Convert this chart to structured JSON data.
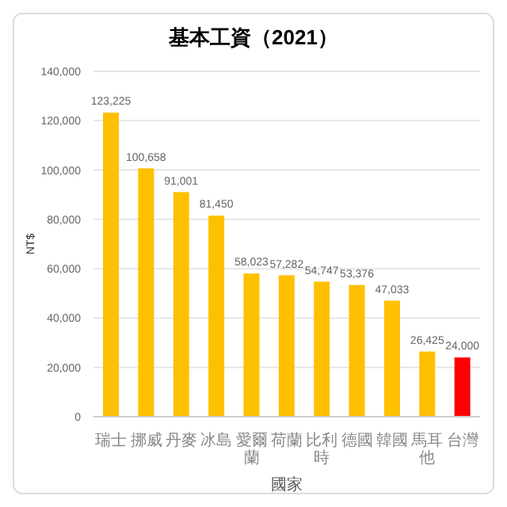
{
  "chart_data": {
    "type": "bar",
    "title": "基本工資（2021）",
    "xlabel": "國家",
    "ylabel": "NT$",
    "categories": [
      "瑞士",
      "挪威",
      "丹麥",
      "冰島",
      "愛爾蘭",
      "荷蘭",
      "比利時",
      "德國",
      "韓國",
      "馬耳他",
      "台灣"
    ],
    "values": [
      123225,
      100658,
      91001,
      81450,
      58023,
      57282,
      54747,
      53376,
      47033,
      26425,
      24000
    ],
    "colors": [
      "#ffc000",
      "#ffc000",
      "#ffc000",
      "#ffc000",
      "#ffc000",
      "#ffc000",
      "#ffc000",
      "#ffc000",
      "#ffc000",
      "#ffc000",
      "#ff0000"
    ],
    "value_labels": [
      "123,225",
      "100,658",
      "91,001",
      "81,450",
      "58,023",
      "57,282",
      "54,747",
      "53,376",
      "47,033",
      "26,425",
      "24,000"
    ],
    "ylim": [
      0,
      140000
    ],
    "yticks": [
      0,
      {
        "value": 20000,
        "label": "20,000"
      },
      {
        "value": 40000,
        "label": "40,000"
      },
      {
        "value": 60000,
        "label": "60,000"
      },
      {
        "value": 80000,
        "label": "80,000"
      },
      {
        "value": 100000,
        "label": "100,000"
      },
      {
        "value": 120000,
        "label": "120,000"
      },
      {
        "value": 140000,
        "label": "140,000"
      }
    ],
    "grid": "y"
  }
}
